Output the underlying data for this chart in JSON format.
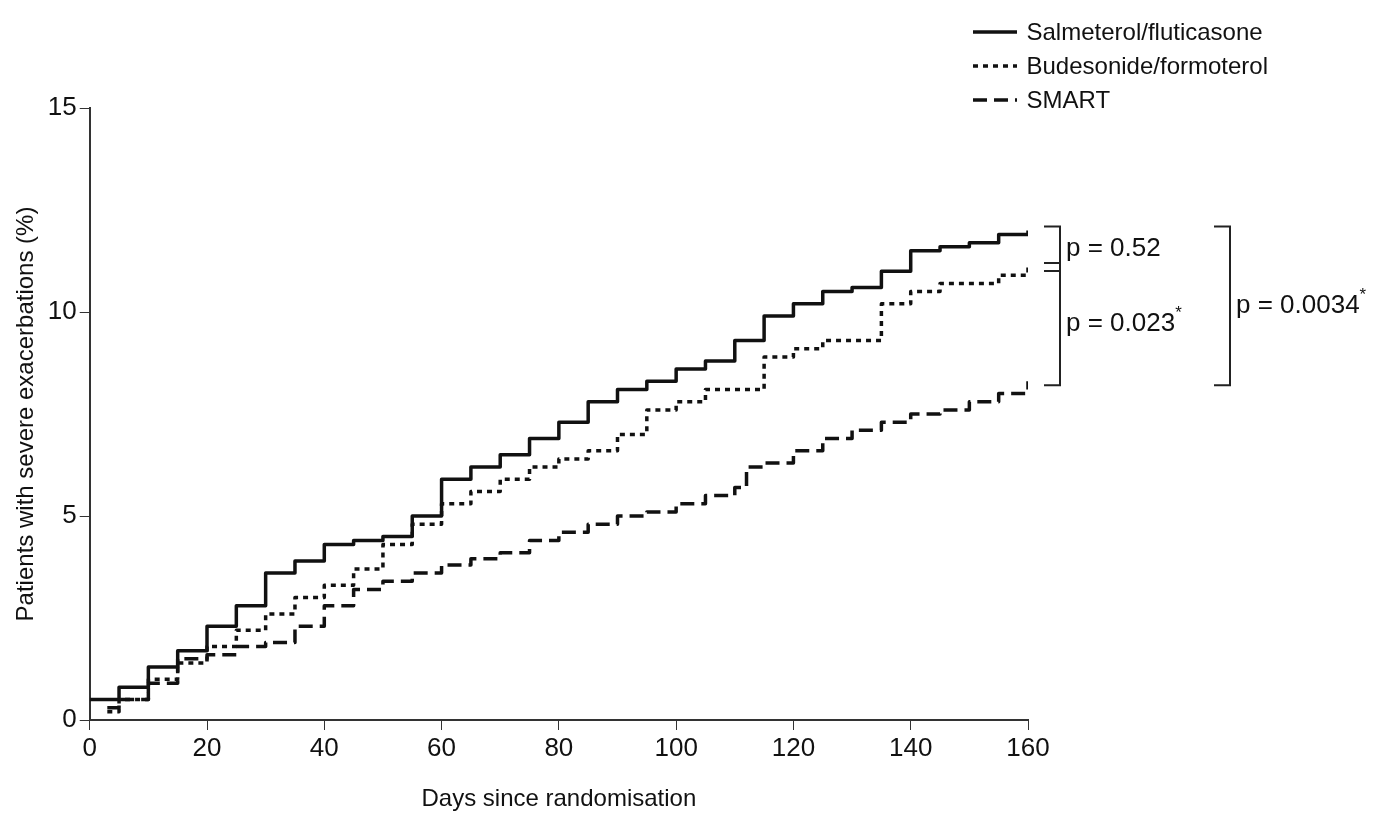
{
  "chart_data": {
    "type": "step",
    "xlabel": "Days since randomisation",
    "ylabel": "Patients with severe exacerbations (%)",
    "xlim": [
      0,
      160
    ],
    "xticks": [
      0,
      20,
      40,
      60,
      80,
      100,
      120,
      140,
      160
    ],
    "ylim": [
      0,
      15
    ],
    "yticks": [
      0,
      5,
      10,
      15
    ],
    "grid": false,
    "legend": "top right",
    "marker": "none",
    "annotations": [
      "p = 0.52",
      "p = 0.023$^{*}$",
      "p = 0.0034$^{*}$"
    ],
    "series": [
      {
        "name": "Salmeterol/fluticasone",
        "color": "#111111",
        "line_style": "solid",
        "x": [
          0,
          5,
          10,
          15,
          20,
          25,
          30,
          35,
          40,
          45,
          50,
          55,
          60,
          65,
          70,
          75,
          80,
          85,
          90,
          95,
          100,
          105,
          110,
          115,
          120,
          125,
          130,
          135,
          140,
          145,
          150,
          155,
          160
        ],
        "values": [
          0.5,
          0.8,
          1.3,
          1.7,
          2.3,
          2.8,
          3.6,
          3.9,
          4.3,
          4.4,
          4.5,
          5.0,
          5.9,
          6.2,
          6.5,
          6.9,
          7.3,
          7.8,
          8.1,
          8.3,
          8.6,
          8.8,
          9.3,
          9.9,
          10.2,
          10.5,
          10.6,
          11.0,
          11.5,
          11.6,
          11.7,
          11.9,
          12.0
        ]
      },
      {
        "name": "Budesonide/formoterol",
        "color": "#111111",
        "line_style": "dotted",
        "x": [
          3,
          5,
          10,
          15,
          20,
          25,
          30,
          35,
          40,
          45,
          50,
          55,
          60,
          65,
          70,
          75,
          80,
          85,
          90,
          95,
          100,
          105,
          110,
          115,
          120,
          125,
          130,
          135,
          140,
          145,
          150,
          155,
          160
        ],
        "values": [
          0.2,
          0.5,
          1.0,
          1.4,
          1.8,
          2.2,
          2.6,
          3.0,
          3.3,
          3.7,
          4.3,
          4.8,
          5.3,
          5.6,
          5.9,
          6.2,
          6.4,
          6.6,
          7.0,
          7.6,
          7.8,
          8.1,
          8.1,
          8.9,
          9.1,
          9.3,
          9.3,
          10.2,
          10.5,
          10.7,
          10.7,
          10.9,
          11.1
        ]
      },
      {
        "name": "SMART",
        "color": "#111111",
        "line_style": "dashed",
        "x": [
          3,
          5,
          10,
          15,
          20,
          25,
          30,
          35,
          40,
          45,
          50,
          55,
          60,
          65,
          70,
          75,
          80,
          85,
          90,
          95,
          100,
          105,
          110,
          112,
          115,
          120,
          125,
          130,
          135,
          140,
          145,
          150,
          155,
          160
        ],
        "values": [
          0.3,
          0.5,
          0.9,
          1.5,
          1.6,
          1.8,
          1.9,
          2.3,
          2.8,
          3.2,
          3.4,
          3.6,
          3.8,
          3.95,
          4.1,
          4.4,
          4.6,
          4.8,
          5.0,
          5.1,
          5.3,
          5.5,
          5.7,
          6.2,
          6.3,
          6.6,
          6.9,
          7.1,
          7.3,
          7.5,
          7.6,
          7.8,
          8.0,
          8.3
        ]
      }
    ]
  }
}
